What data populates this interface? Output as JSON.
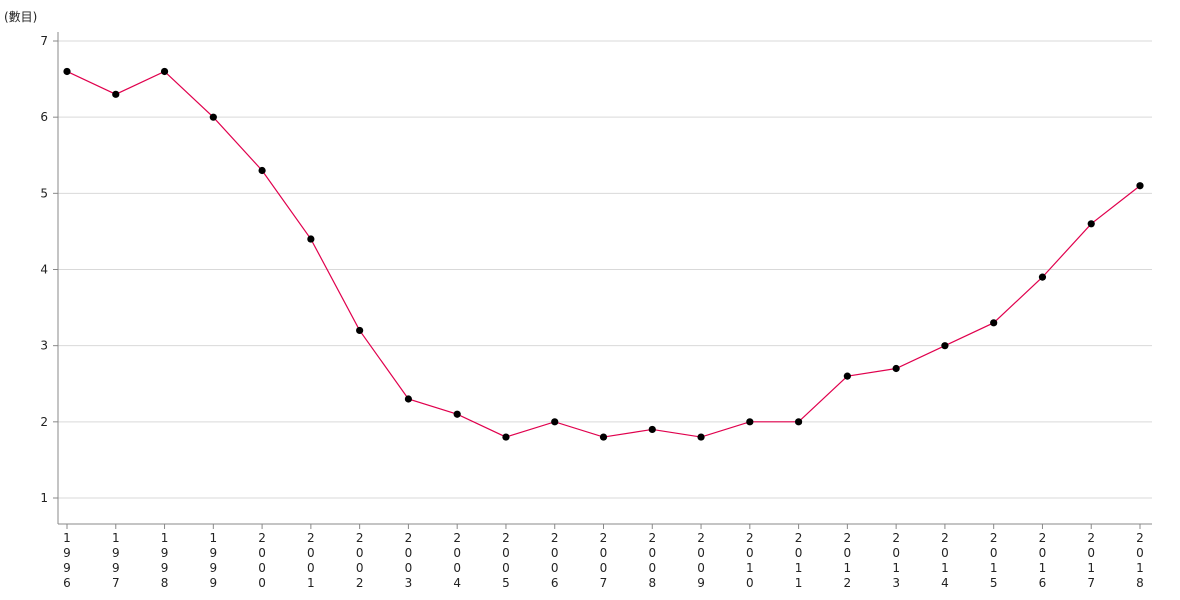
{
  "chart_data": {
    "type": "line",
    "title": "",
    "xlabel": "",
    "ylabel": "(數目)",
    "ylim": [
      1,
      7
    ],
    "yticks": [
      1,
      2,
      3,
      4,
      5,
      6,
      7
    ],
    "grid": true,
    "categories": [
      "1996",
      "1997",
      "1998",
      "1999",
      "2000",
      "2001",
      "2002",
      "2003",
      "2004",
      "2005",
      "2006",
      "2007",
      "2008",
      "2009",
      "2010",
      "2011",
      "2012",
      "2013",
      "2014",
      "2015",
      "2016",
      "2017",
      "2018"
    ],
    "series": [
      {
        "values": [
          6.6,
          6.3,
          6.6,
          6.0,
          5.3,
          4.4,
          3.2,
          2.3,
          2.1,
          1.8,
          2.0,
          1.8,
          1.9,
          1.8,
          2.0,
          2.0,
          2.6,
          2.7,
          3.0,
          3.3,
          3.9,
          4.6,
          5.1
        ],
        "line_color": "#e0004d",
        "marker_color": "#000000"
      }
    ],
    "colors": {
      "grid": "#d9d9d9",
      "axis": "#888888",
      "text": "#222222"
    }
  }
}
